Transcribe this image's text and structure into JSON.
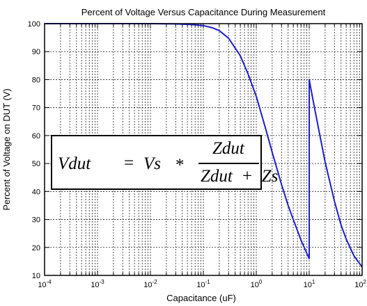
{
  "chart_data": {
    "type": "line",
    "title": "Percent of Voltage Versus Capacitance During Measurement",
    "xlabel": "Capacitance (uF)",
    "ylabel": "Percent of Voltage on DUT (V)",
    "xscale": "log",
    "xlim": [
      0.0001,
      100
    ],
    "ylim": [
      10,
      100
    ],
    "x_ticks": [
      {
        "base": "10",
        "exp": "-4"
      },
      {
        "base": "10",
        "exp": "-3"
      },
      {
        "base": "10",
        "exp": "-2"
      },
      {
        "base": "10",
        "exp": "-1"
      },
      {
        "base": "10",
        "exp": "0"
      },
      {
        "base": "10",
        "exp": "1"
      },
      {
        "base": "10",
        "exp": "2"
      }
    ],
    "y_ticks": [
      10,
      20,
      30,
      40,
      50,
      60,
      70,
      80,
      90,
      100
    ],
    "grid": true,
    "line_color": "#1f1fc8",
    "series": [
      {
        "x": [
          0.0001,
          0.001,
          0.01,
          0.03,
          0.06,
          0.1,
          0.15,
          0.2,
          0.3,
          0.5,
          0.7,
          1,
          1.5,
          2,
          3,
          4,
          5,
          7,
          10,
          10,
          12,
          15,
          20,
          30,
          40,
          50,
          70,
          100
        ],
        "y": [
          100,
          100,
          100,
          99.9,
          99.7,
          99.3,
          98.5,
          97.5,
          94.8,
          88.5,
          82,
          74,
          62.5,
          54,
          42.5,
          35,
          30,
          22.6,
          16,
          80,
          72,
          62.5,
          50.5,
          36.5,
          28,
          23,
          17,
          13
        ]
      }
    ]
  },
  "formula": {
    "lhs": "Vdut",
    "eq": "=",
    "vs": "Vs",
    "op": "*",
    "numerator": "Zdut",
    "denominator": "Zdut  +  Zs"
  }
}
